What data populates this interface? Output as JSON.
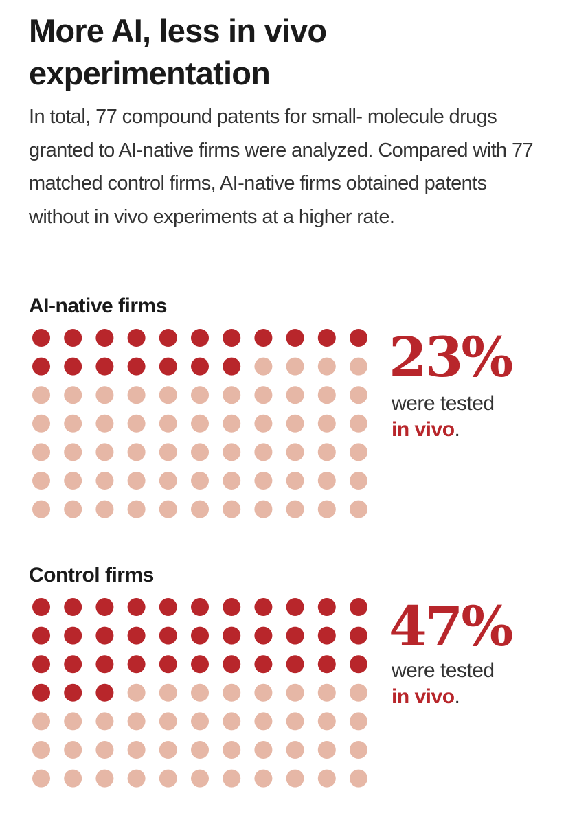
{
  "title": "More AI, less in vivo experimentation",
  "subtitle": "In total, 77 compound patents for small- molecule drugs granted to AI-native firms were analyzed. Compared with 77 matched control firms, AI-native firms obtained patents without in vivo experiments at a higher rate.",
  "colors": {
    "tested": "#b8262b",
    "untested": "#e6b7a6",
    "text": "#1a1a1a"
  },
  "chart_data": [
    {
      "type": "waffle",
      "group": "AI-native firms",
      "total": 77,
      "tested": 18,
      "columns": 11,
      "percent_label": "23%",
      "caption_prefix": "were tested",
      "caption_highlight": "in vivo",
      "caption_suffix": "."
    },
    {
      "type": "waffle",
      "group": "Control firms",
      "total": 77,
      "tested": 36,
      "columns": 11,
      "percent_label": "47%",
      "caption_prefix": "were tested",
      "caption_highlight": "in vivo",
      "caption_suffix": "."
    }
  ]
}
